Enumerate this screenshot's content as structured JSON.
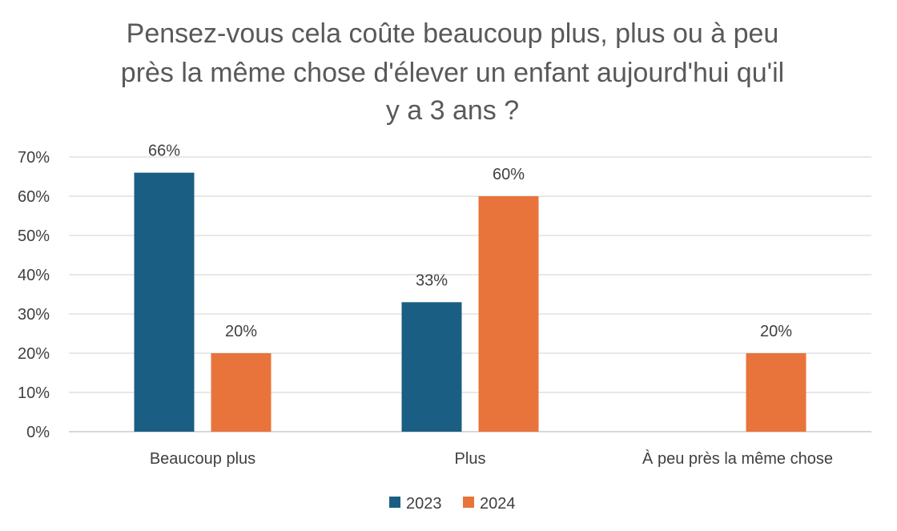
{
  "chart_data": {
    "type": "bar",
    "title_lines": [
      "Pensez-vous cela coûte beaucoup plus, plus ou à peu",
      "près la même chose d'élever un enfant aujourd'hui qu'il",
      "y a 3 ans ?"
    ],
    "categories": [
      "Beaucoup plus",
      "Plus",
      "À peu près la même chose"
    ],
    "series": [
      {
        "name": "2023",
        "color": "#1b5e83",
        "values": [
          66,
          33,
          null
        ],
        "labels": [
          "66%",
          "33%",
          ""
        ]
      },
      {
        "name": "2024",
        "color": "#e8743b",
        "values": [
          20,
          60,
          20
        ],
        "labels": [
          "20%",
          "60%",
          "20%"
        ]
      }
    ],
    "ylim": [
      0,
      70
    ],
    "yticks": [
      "0%",
      "10%",
      "20%",
      "30%",
      "40%",
      "50%",
      "60%",
      "70%"
    ],
    "grid": true,
    "legend_position": "bottom"
  }
}
